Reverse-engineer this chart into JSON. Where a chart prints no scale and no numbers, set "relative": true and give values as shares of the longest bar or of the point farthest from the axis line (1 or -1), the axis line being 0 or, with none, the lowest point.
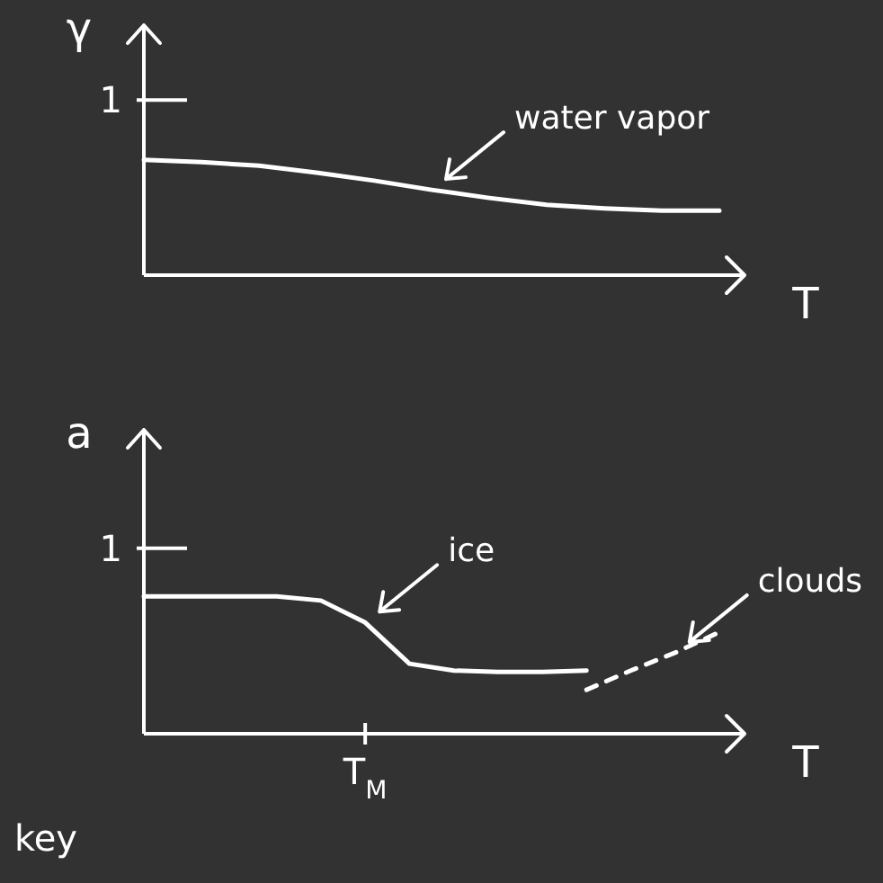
{
  "chart_data": [
    {
      "type": "line",
      "xlabel": "T",
      "ylabel": "γ",
      "categories": [
        null,
        null,
        null,
        null,
        null,
        null,
        null,
        null,
        null,
        null,
        null
      ],
      "relative": true,
      "grid": false,
      "legend": false,
      "marker": "none",
      "annotations": [
        "1"
      ],
      "series": [
        {
          "name": "water vapor",
          "color": "#ffffff",
          "line_style": "solid",
          "values": [
            1,
            0.98,
            0.95,
            0.89,
            0.82,
            0.74,
            0.67,
            0.61,
            0.58,
            0.56,
            0.56
          ]
        }
      ]
    },
    {
      "type": "line",
      "xlabel": "T",
      "ylabel": "a",
      "categories": [
        null,
        null,
        null,
        null,
        null,
        null,
        null,
        null,
        null,
        null,
        null,
        null,
        null,
        null
      ],
      "relative": true,
      "grid": false,
      "legend": false,
      "marker": "none",
      "annotations": [
        "1",
        "T$_{M}$",
        "key"
      ],
      "series": [
        {
          "name": "ice",
          "color": "#ffffff",
          "line_style": "solid",
          "values": [
            1,
            1,
            1,
            1,
            0.97,
            0.81,
            0.51,
            0.46,
            0.45,
            0.45,
            0.46,
            null,
            null,
            null
          ]
        },
        {
          "name": "clouds",
          "color": "#ffffff",
          "line_style": "dashed",
          "values": [
            null,
            null,
            null,
            null,
            null,
            null,
            null,
            null,
            null,
            null,
            0.32,
            0.46,
            0.59,
            0.74
          ]
        }
      ]
    }
  ]
}
